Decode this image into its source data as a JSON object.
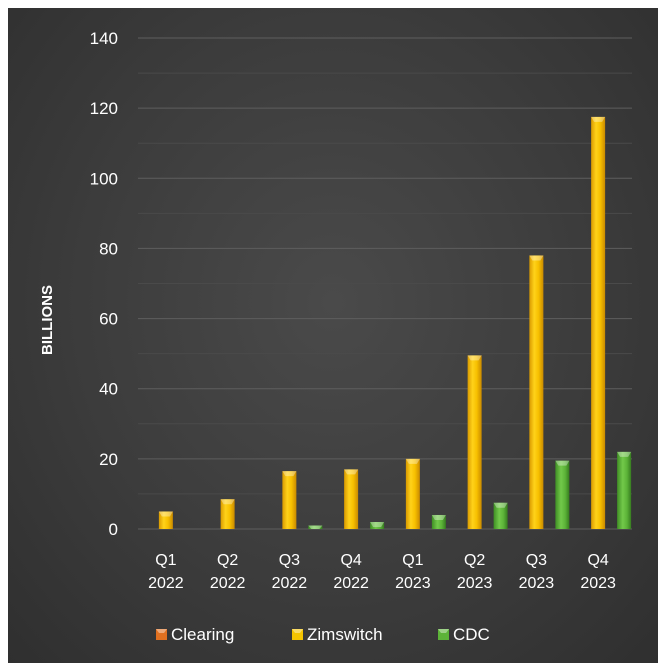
{
  "chart_data": {
    "type": "bar",
    "ylabel": "BILLIONS",
    "ylim": [
      0,
      140
    ],
    "yticks": [
      0,
      20,
      40,
      60,
      80,
      100,
      120,
      140
    ],
    "grid": true,
    "legend_position": "bottom",
    "categories": [
      [
        "Q1",
        "2022"
      ],
      [
        "Q2",
        "2022"
      ],
      [
        "Q3",
        "2022"
      ],
      [
        "Q4",
        "2022"
      ],
      [
        "Q1",
        "2023"
      ],
      [
        "Q2",
        "2023"
      ],
      [
        "Q3",
        "2023"
      ],
      [
        "Q4",
        "2023"
      ]
    ],
    "series": [
      {
        "name": "Clearing",
        "color": "#e07020",
        "values": [
          0,
          0,
          0,
          0,
          0,
          0,
          0,
          0
        ]
      },
      {
        "name": "Zimswitch",
        "color": "#f5c400",
        "values": [
          5,
          8.5,
          16.5,
          17,
          20,
          49.5,
          78,
          117.5
        ]
      },
      {
        "name": "CDC",
        "color": "#5cb338",
        "values": [
          0,
          0,
          1,
          2,
          4,
          7.5,
          19.5,
          22
        ]
      }
    ]
  }
}
